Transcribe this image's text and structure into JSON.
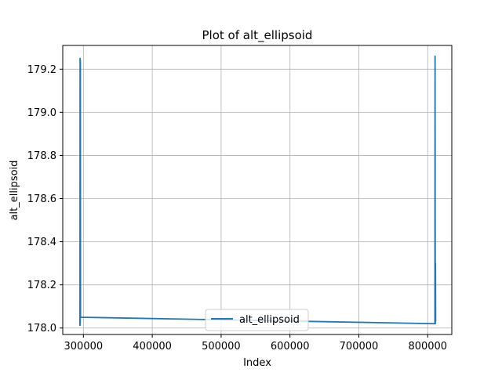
{
  "chart_data": {
    "type": "line",
    "title": "Plot of alt_ellipsoid",
    "xlabel": "Index",
    "ylabel": "alt_ellipsoid",
    "xlim": [
      270000,
      835000
    ],
    "ylim": [
      177.97,
      179.31
    ],
    "x_ticks": [
      300000,
      400000,
      500000,
      600000,
      700000,
      800000
    ],
    "x_tick_labels": [
      "300000",
      "400000",
      "500000",
      "600000",
      "700000",
      "800000"
    ],
    "y_ticks": [
      178.0,
      178.2,
      178.4,
      178.6,
      178.8,
      179.0,
      179.2
    ],
    "y_tick_labels": [
      "178.0",
      "178.2",
      "178.4",
      "178.6",
      "178.8",
      "179.0",
      "179.2"
    ],
    "grid": true,
    "legend_position": "lower-center",
    "series": [
      {
        "name": "alt_ellipsoid",
        "color": "#1f77b4",
        "points": [
          [
            295000,
            178.01
          ],
          [
            295200,
            179.25
          ],
          [
            295400,
            178.02
          ],
          [
            295600,
            179.24
          ],
          [
            295800,
            178.05
          ],
          [
            810500,
            178.02
          ],
          [
            810700,
            179.26
          ],
          [
            810900,
            178.34
          ],
          [
            811100,
            178.02
          ],
          [
            811300,
            178.3
          ],
          [
            811500,
            178.03
          ]
        ]
      }
    ]
  }
}
